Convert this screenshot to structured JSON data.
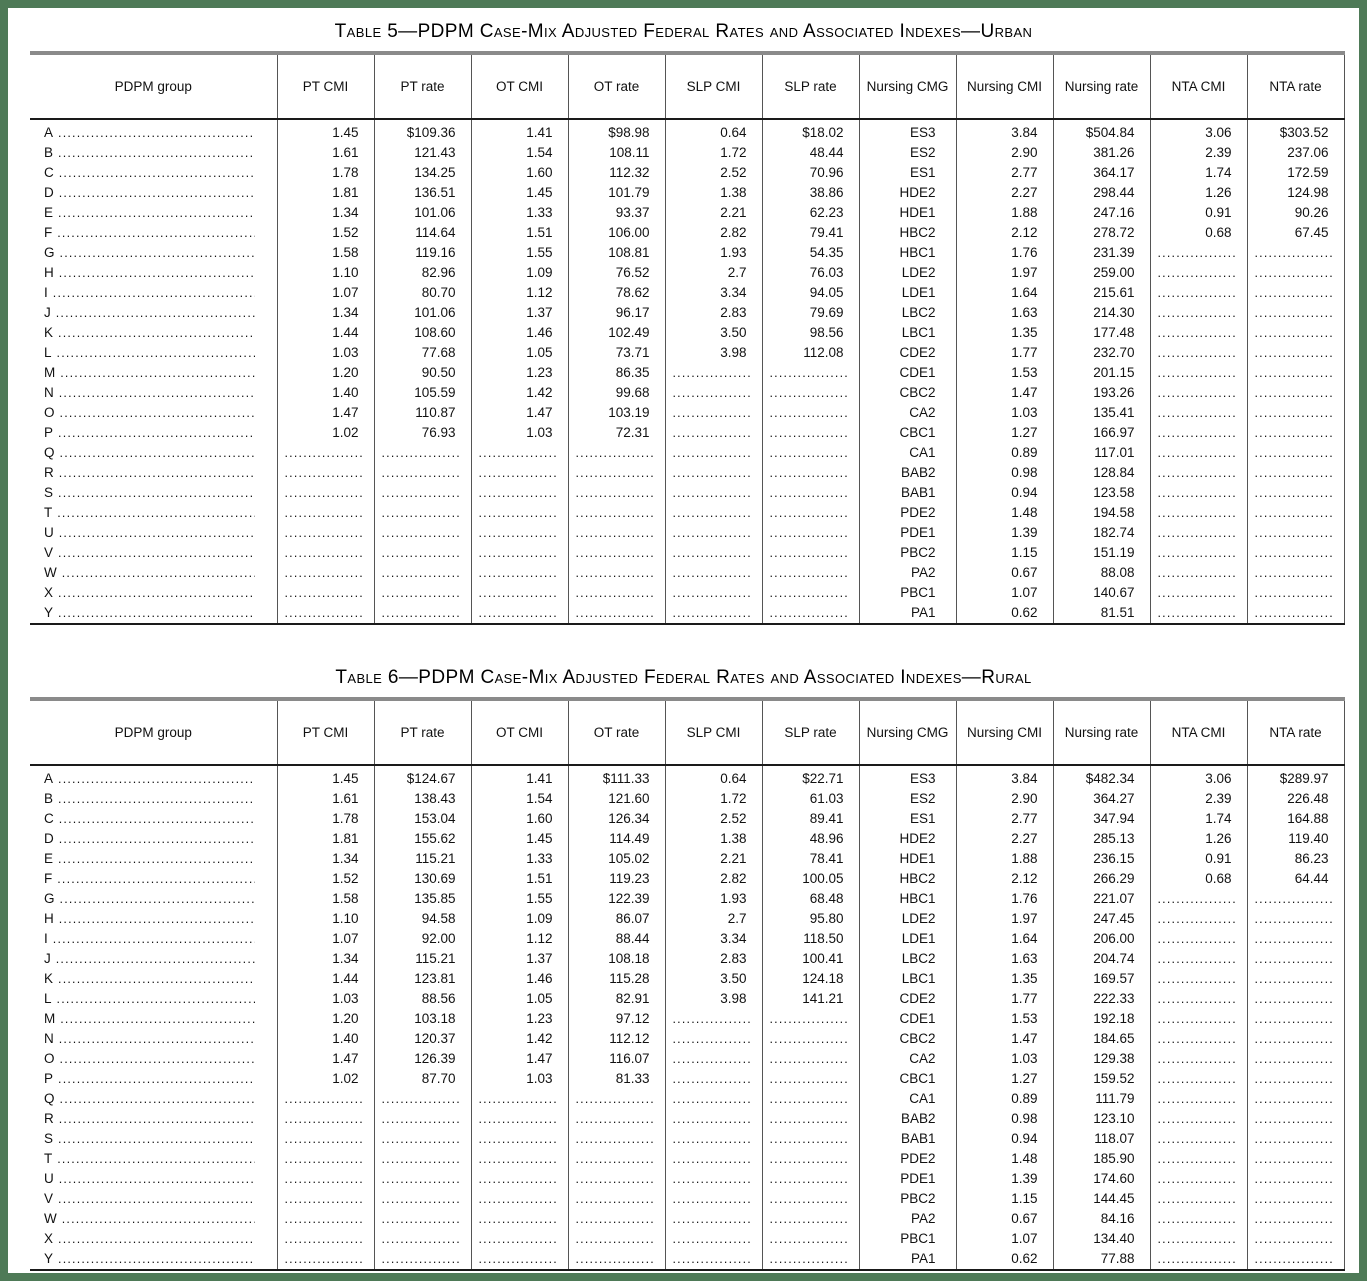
{
  "page": {
    "frame_color": "#4e7a57",
    "background": "#ffffff"
  },
  "tables": [
    {
      "number": "5",
      "title": "Table 5—PDPM Case-Mix Adjusted Federal Rates and Associated Indexes—Urban",
      "columns": [
        "PDPM group",
        "PT CMI",
        "PT rate",
        "OT CMI",
        "OT rate",
        "SLP CMI",
        "SLP rate",
        "Nursing CMG",
        "Nursing CMI",
        "Nursing rate",
        "NTA CMI",
        "NTA rate"
      ],
      "rows": [
        [
          "A",
          "1.45",
          "$109.36",
          "1.41",
          "$98.98",
          "0.64",
          "$18.02",
          "ES3",
          "3.84",
          "$504.84",
          "3.06",
          "$303.52"
        ],
        [
          "B",
          "1.61",
          "121.43",
          "1.54",
          "108.11",
          "1.72",
          "48.44",
          "ES2",
          "2.90",
          "381.26",
          "2.39",
          "237.06"
        ],
        [
          "C",
          "1.78",
          "134.25",
          "1.60",
          "112.32",
          "2.52",
          "70.96",
          "ES1",
          "2.77",
          "364.17",
          "1.74",
          "172.59"
        ],
        [
          "D",
          "1.81",
          "136.51",
          "1.45",
          "101.79",
          "1.38",
          "38.86",
          "HDE2",
          "2.27",
          "298.44",
          "1.26",
          "124.98"
        ],
        [
          "E",
          "1.34",
          "101.06",
          "1.33",
          "93.37",
          "2.21",
          "62.23",
          "HDE1",
          "1.88",
          "247.16",
          "0.91",
          "90.26"
        ],
        [
          "F",
          "1.52",
          "114.64",
          "1.51",
          "106.00",
          "2.82",
          "79.41",
          "HBC2",
          "2.12",
          "278.72",
          "0.68",
          "67.45"
        ],
        [
          "G",
          "1.58",
          "119.16",
          "1.55",
          "108.81",
          "1.93",
          "54.35",
          "HBC1",
          "1.76",
          "231.39",
          "",
          ""
        ],
        [
          "H",
          "1.10",
          "82.96",
          "1.09",
          "76.52",
          "2.7",
          "76.03",
          "LDE2",
          "1.97",
          "259.00",
          "",
          ""
        ],
        [
          "I",
          "1.07",
          "80.70",
          "1.12",
          "78.62",
          "3.34",
          "94.05",
          "LDE1",
          "1.64",
          "215.61",
          "",
          ""
        ],
        [
          "J",
          "1.34",
          "101.06",
          "1.37",
          "96.17",
          "2.83",
          "79.69",
          "LBC2",
          "1.63",
          "214.30",
          "",
          ""
        ],
        [
          "K",
          "1.44",
          "108.60",
          "1.46",
          "102.49",
          "3.50",
          "98.56",
          "LBC1",
          "1.35",
          "177.48",
          "",
          ""
        ],
        [
          "L",
          "1.03",
          "77.68",
          "1.05",
          "73.71",
          "3.98",
          "112.08",
          "CDE2",
          "1.77",
          "232.70",
          "",
          ""
        ],
        [
          "M",
          "1.20",
          "90.50",
          "1.23",
          "86.35",
          "",
          "",
          "CDE1",
          "1.53",
          "201.15",
          "",
          ""
        ],
        [
          "N",
          "1.40",
          "105.59",
          "1.42",
          "99.68",
          "",
          "",
          "CBC2",
          "1.47",
          "193.26",
          "",
          ""
        ],
        [
          "O",
          "1.47",
          "110.87",
          "1.47",
          "103.19",
          "",
          "",
          "CA2",
          "1.03",
          "135.41",
          "",
          ""
        ],
        [
          "P",
          "1.02",
          "76.93",
          "1.03",
          "72.31",
          "",
          "",
          "CBC1",
          "1.27",
          "166.97",
          "",
          ""
        ],
        [
          "Q",
          "",
          "",
          "",
          "",
          "",
          "",
          "CA1",
          "0.89",
          "117.01",
          "",
          ""
        ],
        [
          "R",
          "",
          "",
          "",
          "",
          "",
          "",
          "BAB2",
          "0.98",
          "128.84",
          "",
          ""
        ],
        [
          "S",
          "",
          "",
          "",
          "",
          "",
          "",
          "BAB1",
          "0.94",
          "123.58",
          "",
          ""
        ],
        [
          "T",
          "",
          "",
          "",
          "",
          "",
          "",
          "PDE2",
          "1.48",
          "194.58",
          "",
          ""
        ],
        [
          "U",
          "",
          "",
          "",
          "",
          "",
          "",
          "PDE1",
          "1.39",
          "182.74",
          "",
          ""
        ],
        [
          "V",
          "",
          "",
          "",
          "",
          "",
          "",
          "PBC2",
          "1.15",
          "151.19",
          "",
          ""
        ],
        [
          "W",
          "",
          "",
          "",
          "",
          "",
          "",
          "PA2",
          "0.67",
          "88.08",
          "",
          ""
        ],
        [
          "X",
          "",
          "",
          "",
          "",
          "",
          "",
          "PBC1",
          "1.07",
          "140.67",
          "",
          ""
        ],
        [
          "Y",
          "",
          "",
          "",
          "",
          "",
          "",
          "PA1",
          "0.62",
          "81.51",
          "",
          ""
        ]
      ]
    },
    {
      "number": "6",
      "title": "Table 6—PDPM Case-Mix Adjusted Federal Rates and Associated Indexes—Rural",
      "columns": [
        "PDPM group",
        "PT CMI",
        "PT rate",
        "OT CMI",
        "OT rate",
        "SLP CMI",
        "SLP rate",
        "Nursing CMG",
        "Nursing CMI",
        "Nursing rate",
        "NTA CMI",
        "NTA rate"
      ],
      "rows": [
        [
          "A",
          "1.45",
          "$124.67",
          "1.41",
          "$111.33",
          "0.64",
          "$22.71",
          "ES3",
          "3.84",
          "$482.34",
          "3.06",
          "$289.97"
        ],
        [
          "B",
          "1.61",
          "138.43",
          "1.54",
          "121.60",
          "1.72",
          "61.03",
          "ES2",
          "2.90",
          "364.27",
          "2.39",
          "226.48"
        ],
        [
          "C",
          "1.78",
          "153.04",
          "1.60",
          "126.34",
          "2.52",
          "89.41",
          "ES1",
          "2.77",
          "347.94",
          "1.74",
          "164.88"
        ],
        [
          "D",
          "1.81",
          "155.62",
          "1.45",
          "114.49",
          "1.38",
          "48.96",
          "HDE2",
          "2.27",
          "285.13",
          "1.26",
          "119.40"
        ],
        [
          "E",
          "1.34",
          "115.21",
          "1.33",
          "105.02",
          "2.21",
          "78.41",
          "HDE1",
          "1.88",
          "236.15",
          "0.91",
          "86.23"
        ],
        [
          "F",
          "1.52",
          "130.69",
          "1.51",
          "119.23",
          "2.82",
          "100.05",
          "HBC2",
          "2.12",
          "266.29",
          "0.68",
          "64.44"
        ],
        [
          "G",
          "1.58",
          "135.85",
          "1.55",
          "122.39",
          "1.93",
          "68.48",
          "HBC1",
          "1.76",
          "221.07",
          "",
          ""
        ],
        [
          "H",
          "1.10",
          "94.58",
          "1.09",
          "86.07",
          "2.7",
          "95.80",
          "LDE2",
          "1.97",
          "247.45",
          "",
          ""
        ],
        [
          "I",
          "1.07",
          "92.00",
          "1.12",
          "88.44",
          "3.34",
          "118.50",
          "LDE1",
          "1.64",
          "206.00",
          "",
          ""
        ],
        [
          "J",
          "1.34",
          "115.21",
          "1.37",
          "108.18",
          "2.83",
          "100.41",
          "LBC2",
          "1.63",
          "204.74",
          "",
          ""
        ],
        [
          "K",
          "1.44",
          "123.81",
          "1.46",
          "115.28",
          "3.50",
          "124.18",
          "LBC1",
          "1.35",
          "169.57",
          "",
          ""
        ],
        [
          "L",
          "1.03",
          "88.56",
          "1.05",
          "82.91",
          "3.98",
          "141.21",
          "CDE2",
          "1.77",
          "222.33",
          "",
          ""
        ],
        [
          "M",
          "1.20",
          "103.18",
          "1.23",
          "97.12",
          "",
          "",
          "CDE1",
          "1.53",
          "192.18",
          "",
          ""
        ],
        [
          "N",
          "1.40",
          "120.37",
          "1.42",
          "112.12",
          "",
          "",
          "CBC2",
          "1.47",
          "184.65",
          "",
          ""
        ],
        [
          "O",
          "1.47",
          "126.39",
          "1.47",
          "116.07",
          "",
          "",
          "CA2",
          "1.03",
          "129.38",
          "",
          ""
        ],
        [
          "P",
          "1.02",
          "87.70",
          "1.03",
          "81.33",
          "",
          "",
          "CBC1",
          "1.27",
          "159.52",
          "",
          ""
        ],
        [
          "Q",
          "",
          "",
          "",
          "",
          "",
          "",
          "CA1",
          "0.89",
          "111.79",
          "",
          ""
        ],
        [
          "R",
          "",
          "",
          "",
          "",
          "",
          "",
          "BAB2",
          "0.98",
          "123.10",
          "",
          ""
        ],
        [
          "S",
          "",
          "",
          "",
          "",
          "",
          "",
          "BAB1",
          "0.94",
          "118.07",
          "",
          ""
        ],
        [
          "T",
          "",
          "",
          "",
          "",
          "",
          "",
          "PDE2",
          "1.48",
          "185.90",
          "",
          ""
        ],
        [
          "U",
          "",
          "",
          "",
          "",
          "",
          "",
          "PDE1",
          "1.39",
          "174.60",
          "",
          ""
        ],
        [
          "V",
          "",
          "",
          "",
          "",
          "",
          "",
          "PBC2",
          "1.15",
          "144.45",
          "",
          ""
        ],
        [
          "W",
          "",
          "",
          "",
          "",
          "",
          "",
          "PA2",
          "0.67",
          "84.16",
          "",
          ""
        ],
        [
          "X",
          "",
          "",
          "",
          "",
          "",
          "",
          "PBC1",
          "1.07",
          "134.40",
          "",
          ""
        ],
        [
          "Y",
          "",
          "",
          "",
          "",
          "",
          "",
          "PA1",
          "0.62",
          "77.88",
          "",
          ""
        ]
      ]
    }
  ]
}
